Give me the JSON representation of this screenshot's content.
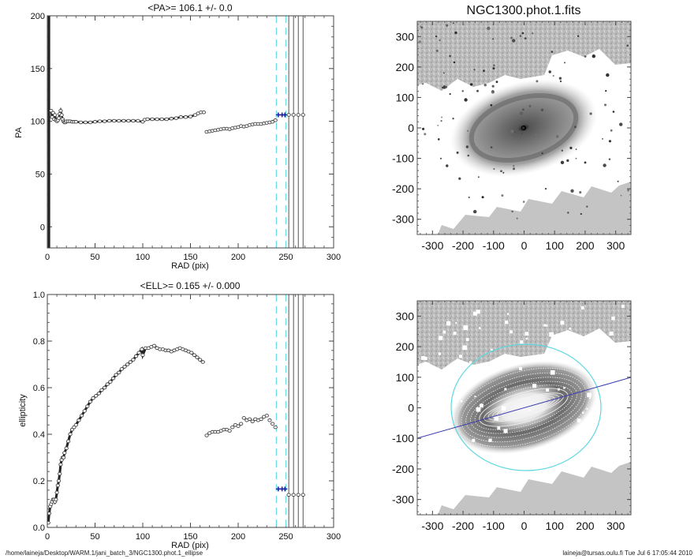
{
  "chart_data": [
    {
      "type": "scatter",
      "id": "pa",
      "title": "<PA>= 106.1 +/-   0.0",
      "xlabel": "RAD (pix)",
      "ylabel": "PA",
      "xlim": [
        0,
        300
      ],
      "ylim": [
        -20,
        200
      ],
      "xticks": [
        0,
        50,
        100,
        150,
        200,
        250,
        300
      ],
      "yticks": [
        0,
        50,
        100,
        150,
        200
      ],
      "grid": false,
      "inner_spike_radius": [
        0,
        3
      ],
      "inner_spike_range": [
        -20,
        200
      ],
      "series": [
        {
          "name": "inner",
          "x": [
            4,
            5,
            6,
            7,
            8,
            9,
            10,
            11,
            12,
            13,
            14,
            15,
            16,
            17,
            18,
            19,
            20,
            22,
            24,
            26,
            28,
            30,
            35,
            40,
            45,
            50,
            55,
            60,
            65,
            70,
            75,
            80,
            85,
            90,
            95,
            100,
            102,
            105,
            110,
            115,
            120,
            125,
            130,
            135,
            140,
            145,
            150,
            155,
            158,
            161,
            164
          ],
          "y": [
            110,
            104,
            108,
            102,
            106,
            101,
            100,
            101,
            103,
            107,
            110,
            106,
            102,
            100,
            99,
            99,
            100,
            100,
            100,
            99.5,
            99.5,
            99.5,
            99,
            99,
            99,
            99.5,
            100,
            100,
            100.5,
            100.5,
            100.5,
            100.5,
            100.5,
            100.5,
            100.5,
            99.5,
            101.5,
            102,
            102,
            102,
            102,
            102,
            102.5,
            103,
            104,
            104,
            104.5,
            106,
            107.5,
            108.5,
            108.5
          ]
        },
        {
          "name": "outer",
          "x": [
            167,
            170,
            173,
            176,
            179,
            182,
            185,
            188,
            191,
            194,
            197,
            200,
            203,
            206,
            209,
            212,
            215,
            218,
            221,
            224,
            227,
            230,
            233,
            236,
            239
          ],
          "y": [
            90,
            90.5,
            91,
            91.5,
            92,
            92.5,
            93,
            93,
            92.5,
            93.5,
            94,
            94.5,
            95.5,
            95,
            95.5,
            96.5,
            97,
            97.5,
            97.5,
            97.5,
            98,
            98.5,
            99,
            99.5,
            101
          ]
        },
        {
          "name": "mean",
          "x": [
            242,
            246,
            249
          ],
          "y": [
            106.1,
            106.1,
            106.1
          ],
          "color": "#1a1aa8"
        },
        {
          "name": "fixed",
          "x": [
            253,
            258,
            263,
            268
          ],
          "y": [
            106.1,
            106.1,
            106.1,
            106.1
          ]
        }
      ],
      "vlines_dashed": [
        240,
        250
      ],
      "vlines_solid": [
        253,
        258,
        263,
        268
      ],
      "dashed_color": "#66dde0",
      "solid_color": "#555555"
    },
    {
      "type": "scatter",
      "id": "ell",
      "title": "<ELL>= 0.165 +/-  0.000",
      "xlabel": "RAD (pix)",
      "ylabel": "ellipticity",
      "xlim": [
        0,
        300
      ],
      "ylim": [
        0,
        1.0
      ],
      "xticks": [
        0,
        50,
        100,
        150,
        200,
        250,
        300
      ],
      "yticks": [
        0.0,
        0.2,
        0.4,
        0.6,
        0.8,
        1.0
      ],
      "ytick_labels": [
        "0.0",
        "0.2",
        "0.4",
        "0.6",
        "0.8",
        "1.0"
      ],
      "grid": false,
      "series": [
        {
          "name": "inner",
          "x": [
            1,
            2,
            3,
            4,
            5,
            6,
            7,
            8,
            9,
            10,
            11,
            12,
            13,
            14,
            15,
            16,
            17,
            18,
            20,
            22,
            24,
            26,
            28,
            30,
            33,
            36,
            39,
            42,
            45,
            48,
            51,
            54,
            57,
            60,
            63,
            66,
            69,
            72,
            75,
            78,
            81,
            84,
            87,
            90,
            93,
            96,
            99,
            100,
            103,
            106,
            109,
            112,
            115,
            118,
            121,
            124,
            127,
            130,
            133,
            136,
            139,
            142,
            145,
            148,
            151,
            154,
            157,
            160,
            163
          ],
          "y": [
            0.02,
            0.06,
            0.09,
            0.1,
            0.11,
            0.12,
            0.12,
            0.11,
            0.12,
            0.15,
            0.18,
            0.2,
            0.23,
            0.27,
            0.29,
            0.3,
            0.3,
            0.32,
            0.34,
            0.37,
            0.4,
            0.42,
            0.43,
            0.44,
            0.46,
            0.48,
            0.5,
            0.52,
            0.54,
            0.555,
            0.565,
            0.575,
            0.59,
            0.6,
            0.615,
            0.625,
            0.64,
            0.655,
            0.665,
            0.68,
            0.69,
            0.7,
            0.71,
            0.72,
            0.735,
            0.75,
            0.765,
            0.74,
            0.77,
            0.77,
            0.775,
            0.78,
            0.77,
            0.765,
            0.765,
            0.76,
            0.76,
            0.755,
            0.76,
            0.765,
            0.77,
            0.765,
            0.76,
            0.755,
            0.75,
            0.74,
            0.73,
            0.72,
            0.71
          ]
        },
        {
          "name": "outer",
          "x": [
            167,
            170,
            173,
            176,
            179,
            182,
            185,
            188,
            191,
            194,
            197,
            200,
            203,
            206,
            209,
            212,
            215,
            218,
            221,
            224,
            227,
            230,
            233,
            236,
            239
          ],
          "y": [
            0.395,
            0.405,
            0.41,
            0.41,
            0.41,
            0.415,
            0.42,
            0.42,
            0.415,
            0.43,
            0.44,
            0.435,
            0.445,
            0.47,
            0.46,
            0.465,
            0.455,
            0.465,
            0.46,
            0.465,
            0.475,
            0.48,
            0.46,
            0.445,
            0.43
          ]
        },
        {
          "name": "mean",
          "x": [
            242,
            246,
            249
          ],
          "y": [
            0.165,
            0.165,
            0.165
          ],
          "color": "#1a1aa8"
        },
        {
          "name": "fixed",
          "x": [
            253,
            258,
            263,
            268
          ],
          "y": [
            0.14,
            0.14,
            0.14,
            0.14
          ]
        }
      ],
      "vlines_dashed": [
        240,
        250
      ],
      "vlines_solid": [
        253,
        258,
        263,
        268
      ],
      "dashed_color": "#66dde0",
      "solid_color": "#555555"
    },
    {
      "type": "heatmap",
      "id": "img1",
      "title": "NGC1300.phot.1.fits",
      "xlim": [
        -350,
        350
      ],
      "ylim": [
        -350,
        350
      ],
      "xticks": [
        -300,
        -200,
        -100,
        0,
        100,
        200,
        300
      ],
      "yticks": [
        -300,
        -200,
        -100,
        0,
        100,
        200,
        300
      ],
      "colormap": "gray-inverted",
      "galaxy": {
        "center": [
          0,
          0
        ],
        "semi_major": 230,
        "semi_minor": 130,
        "pa_deg": 106.1
      }
    },
    {
      "type": "heatmap",
      "id": "img2",
      "title": "",
      "xlim": [
        -350,
        350
      ],
      "ylim": [
        -350,
        350
      ],
      "xticks": [
        -300,
        -200,
        -100,
        0,
        100,
        200,
        300
      ],
      "yticks": [
        -300,
        -200,
        -100,
        0,
        100,
        200,
        300
      ],
      "colormap": "gray-inverted",
      "overlay": {
        "outer_ellipse": {
          "center": [
            0,
            0
          ],
          "semi_major": 245,
          "semi_minor": 205,
          "color": "#5fd7e0"
        },
        "pa_line": {
          "from": [
            -350,
            -100
          ],
          "to": [
            350,
            100
          ],
          "color": "#3a3ab0"
        },
        "isophote_count": 14
      }
    }
  ],
  "footer": {
    "path": "/home/laineja/Desktop/WARM.1/jani_batch_3/NGC1300.phot.1_ellipse",
    "stamp": "laineja@tursas.oulu.fi  Tue Jul  6 17:05:44 2010"
  }
}
